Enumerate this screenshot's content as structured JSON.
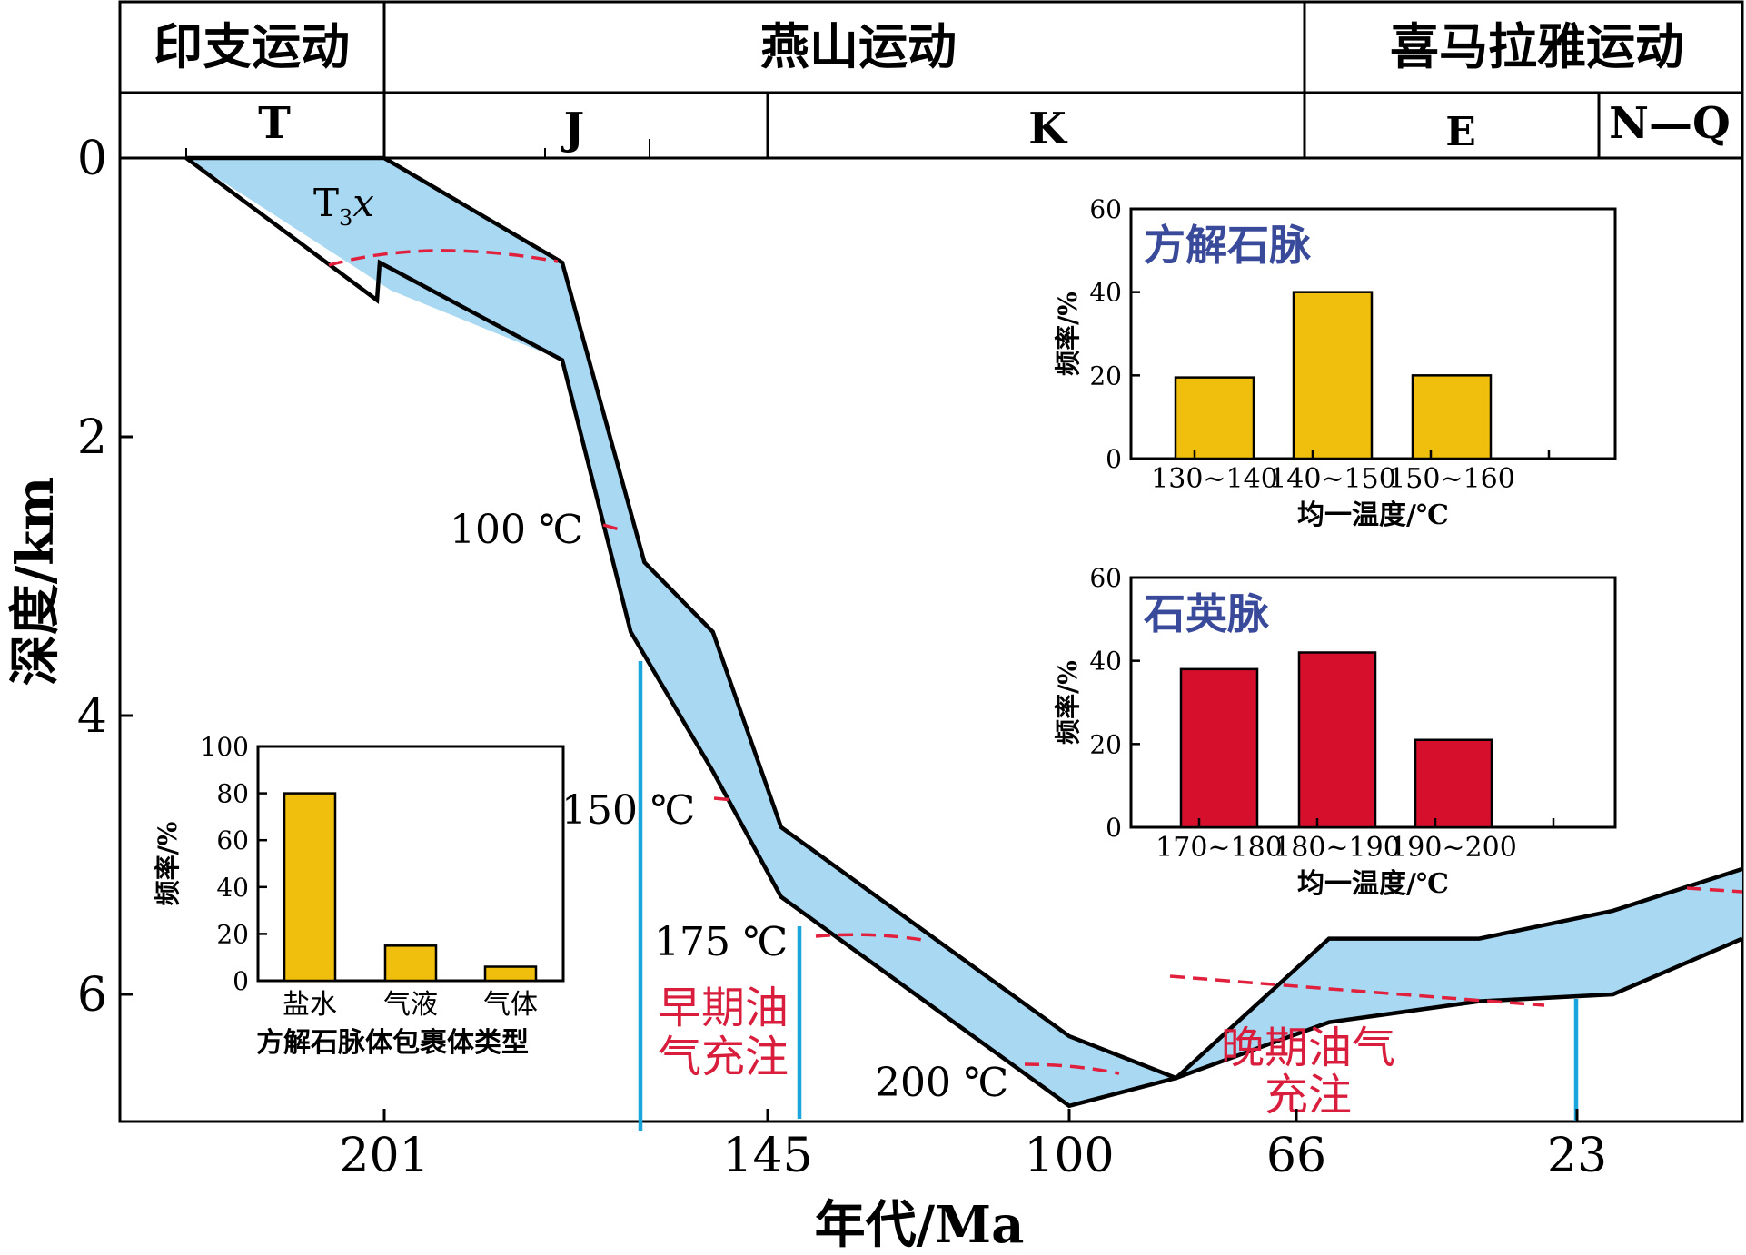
{
  "events": [
    "印支运动",
    "燕山运动",
    "喜马拉雅运动"
  ],
  "periods": [
    "T",
    "J",
    "K",
    "E",
    "N—Q"
  ],
  "formation_label": {
    "main": "T",
    "sub": "3",
    "tail": "x"
  },
  "axes": {
    "y_label": "深度/km",
    "x_label": "年代/Ma",
    "y_ticks": [
      "0",
      "2",
      "4",
      "6"
    ],
    "x_ticks": [
      "201",
      "145",
      "100",
      "66",
      "23"
    ]
  },
  "isotherms": [
    "100 ℃",
    "150 ℃",
    "175 ℃",
    "200 ℃"
  ],
  "charge_labels": {
    "early": [
      "早期油",
      "气充注"
    ],
    "late": [
      "晚期油气",
      "充注"
    ]
  },
  "colors": {
    "band_fill": "#a9d8f2",
    "isotherm": "#e0203c",
    "charge_line": "#1aa6dc",
    "charge_text": "#d81e3c",
    "bar_yellow": "#f0be0c",
    "bar_red": "#d6102c",
    "inset_title": "#3a4a9a"
  },
  "chart_data": [
    {
      "type": "area",
      "title": "",
      "xlabel": "年代/Ma",
      "ylabel": "深度/km",
      "x_ticks": [
        201,
        145,
        100,
        66,
        23
      ],
      "y_ticks": [
        0,
        2,
        4,
        6
      ],
      "ylim": [
        0,
        6.9
      ],
      "y_inverted": true,
      "series": [
        {
          "x": [
            232,
            201,
            175,
            163,
            153,
            143,
            100,
            84,
            61,
            38,
            18,
            0
          ],
          "values": [
            0,
            0,
            0.75,
            2.9,
            3.4,
            4.8,
            6.3,
            6.6,
            5.6,
            5.6,
            5.4,
            5.1
          ]
        },
        {
          "x": [
            232,
            200,
            175,
            165,
            153,
            143,
            100,
            84,
            61,
            38,
            18,
            0
          ],
          "values": [
            0,
            0.95,
            1.45,
            3.4,
            4.4,
            5.3,
            6.8,
            6.6,
            6.2,
            6.05,
            6.0,
            5.6
          ]
        }
      ],
      "isotherm_labels": [
        "100 ℃",
        "150 ℃",
        "175 ℃",
        "200 ℃"
      ],
      "annotations": [
        "T3x",
        "早期油气充注",
        "晚期油气充注"
      ]
    },
    {
      "type": "bar",
      "title": "方解石脉",
      "categories": [
        "130~140",
        "140~150",
        "150~160"
      ],
      "values": [
        19.5,
        40,
        20
      ],
      "xlabel": "均一温度/℃",
      "ylabel": "频率/%",
      "ylim": [
        0,
        60
      ],
      "y_ticks": [
        "0",
        "20",
        "40",
        "60"
      ]
    },
    {
      "type": "bar",
      "title": "石英脉",
      "categories": [
        "170~180",
        "180~190",
        "190~200"
      ],
      "values": [
        38,
        42,
        21
      ],
      "xlabel": "均一温度/℃",
      "ylabel": "频率/%",
      "ylim": [
        0,
        60
      ],
      "y_ticks": [
        "0",
        "20",
        "40",
        "60"
      ]
    },
    {
      "type": "bar",
      "title": "",
      "categories": [
        "盐水",
        "气液",
        "气体"
      ],
      "values": [
        80,
        15,
        6
      ],
      "xlabel": "方解石脉体包裹体类型",
      "ylabel": "频率/%",
      "ylim": [
        0,
        100
      ],
      "y_ticks": [
        "0",
        "20",
        "40",
        "60",
        "80",
        "100"
      ]
    }
  ]
}
